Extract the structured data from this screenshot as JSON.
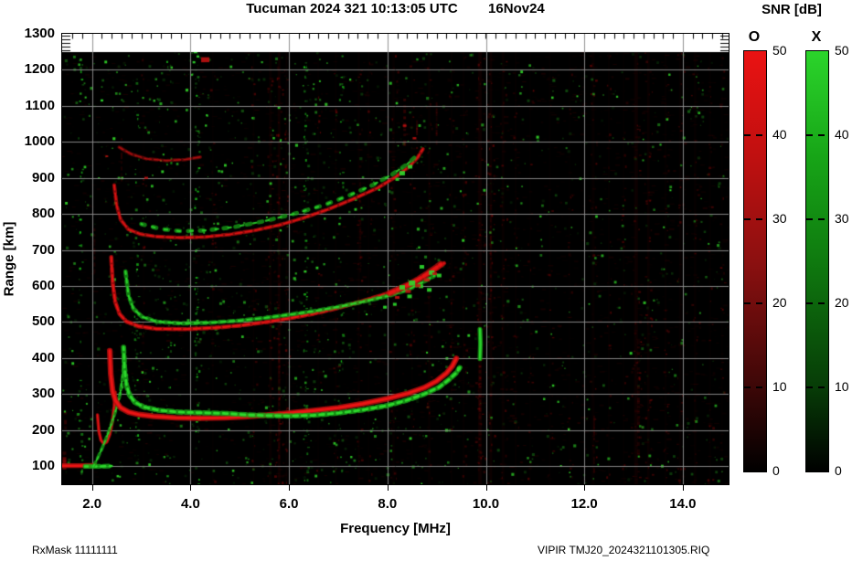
{
  "header": {
    "title": "Tucuman 2024 321 10:13:05 UTC        16Nov24"
  },
  "axes": {
    "x_label": "Frequency [MHz]",
    "y_label": "Range [km]",
    "x_tick_labels": [
      "2.0",
      "4.0",
      "6.0",
      "8.0",
      "10.0",
      "12.0",
      "14.0"
    ],
    "x_tick_values": [
      2,
      4,
      6,
      8,
      10,
      12,
      14
    ],
    "y_tick_labels": [
      "1300",
      "1200",
      "1100",
      "1000",
      "900",
      "800",
      "700",
      "600",
      "500",
      "400",
      "300",
      "200",
      "100"
    ],
    "y_tick_values": [
      1300,
      1200,
      1100,
      1000,
      900,
      800,
      700,
      600,
      500,
      400,
      300,
      200,
      100
    ]
  },
  "colorbar": {
    "title": "SNR [dB]",
    "bars": [
      {
        "label": "O",
        "top_color": "#ea1212"
      },
      {
        "label": "X",
        "top_color": "#2bd42b"
      }
    ],
    "tick_labels": [
      "50",
      "40",
      "30",
      "20",
      "10",
      "0"
    ],
    "tick_values": [
      50,
      40,
      30,
      20,
      10,
      0
    ]
  },
  "footer": {
    "left": "RxMask 11111111",
    "right": "VIPIR  TMJ20_2024321101305.RIQ"
  },
  "chart_data": {
    "type": "heatmap",
    "title": "Tucuman 2024 321 10:13:05 UTC 16Nov24",
    "xlabel": "Frequency [MHz]",
    "ylabel": "Range [km]",
    "xlim": [
      1.4,
      14.93
    ],
    "ylim": [
      49,
      1300
    ],
    "x_ticks": [
      2,
      4,
      6,
      8,
      10,
      12,
      14
    ],
    "y_ticks": [
      100,
      200,
      300,
      400,
      500,
      600,
      700,
      800,
      900,
      1000,
      1100,
      1200,
      1300
    ],
    "grid": true,
    "colorbars": [
      {
        "name": "O",
        "color_scale": "black-to-red",
        "range_db": [
          0,
          50
        ]
      },
      {
        "name": "X",
        "color_scale": "black-to-green",
        "range_db": [
          0,
          50
        ]
      }
    ],
    "traces": [
      {
        "name": "E-echo-O",
        "mode": "O",
        "style": "solid",
        "width": 4,
        "alpha": 1,
        "points": [
          [
            1.4,
            101
          ],
          [
            1.72,
            101
          ],
          [
            2.06,
            102
          ]
        ]
      },
      {
        "name": "E-echo-X",
        "mode": "X",
        "style": "dash",
        "width": 4,
        "alpha": 1,
        "points": [
          [
            1.86,
            99
          ],
          [
            2.12,
            99
          ],
          [
            2.4,
            100
          ]
        ]
      },
      {
        "name": "E-cusp-O",
        "mode": "O",
        "style": "solid",
        "width": 2.5,
        "alpha": 0.95,
        "points": [
          [
            2.11,
            242
          ],
          [
            2.14,
            196
          ],
          [
            2.18,
            172
          ],
          [
            2.24,
            162
          ],
          [
            2.3,
            167
          ],
          [
            2.36,
            188
          ],
          [
            2.41,
            222
          ],
          [
            2.45,
            266
          ],
          [
            2.47,
            305
          ]
        ]
      },
      {
        "name": "EF-valley-X",
        "mode": "X",
        "style": "dash",
        "width": 2.5,
        "alpha": 0.9,
        "points": [
          [
            2.02,
            98
          ],
          [
            2.1,
            118
          ],
          [
            2.18,
            142
          ],
          [
            2.26,
            168
          ],
          [
            2.34,
            196
          ],
          [
            2.42,
            228
          ],
          [
            2.5,
            262
          ],
          [
            2.57,
            300
          ],
          [
            2.62,
            348
          ],
          [
            2.66,
            410
          ]
        ]
      },
      {
        "name": "F1-O",
        "mode": "O",
        "style": "solid",
        "width": 5,
        "alpha": 1,
        "points": [
          [
            2.36,
            420
          ],
          [
            2.38,
            356
          ],
          [
            2.42,
            306
          ],
          [
            2.48,
            281
          ],
          [
            2.58,
            262
          ],
          [
            2.74,
            250
          ],
          [
            2.95,
            243
          ],
          [
            3.25,
            238
          ],
          [
            3.7,
            234
          ],
          [
            4.2,
            233
          ],
          [
            4.7,
            234
          ],
          [
            5.1,
            237
          ],
          [
            5.5,
            241
          ],
          [
            6.0,
            247
          ],
          [
            6.5,
            254
          ],
          [
            7.0,
            262
          ],
          [
            7.5,
            273
          ],
          [
            8.0,
            287
          ],
          [
            8.4,
            301
          ],
          [
            8.75,
            318
          ],
          [
            9.0,
            336
          ],
          [
            9.2,
            358
          ],
          [
            9.32,
            378
          ],
          [
            9.4,
            399
          ]
        ]
      },
      {
        "name": "F1-X",
        "mode": "X",
        "style": "dash",
        "width": 4.5,
        "alpha": 1,
        "points": [
          [
            2.64,
            430
          ],
          [
            2.66,
            372
          ],
          [
            2.7,
            324
          ],
          [
            2.76,
            297
          ],
          [
            2.87,
            277
          ],
          [
            3.05,
            264
          ],
          [
            3.35,
            255
          ],
          [
            3.75,
            250
          ],
          [
            4.2,
            248
          ],
          [
            4.7,
            246
          ],
          [
            5.2,
            242
          ],
          [
            5.6,
            240
          ],
          [
            6.0,
            239
          ],
          [
            6.5,
            241
          ],
          [
            7.0,
            247
          ],
          [
            7.5,
            256
          ],
          [
            8.0,
            268
          ],
          [
            8.4,
            283
          ],
          [
            8.75,
            300
          ],
          [
            9.05,
            319
          ],
          [
            9.25,
            340
          ],
          [
            9.4,
            359
          ],
          [
            9.47,
            373
          ]
        ]
      },
      {
        "name": "F2-O",
        "mode": "O",
        "style": "frag",
        "width": 3.5,
        "alpha": 0.95,
        "points": [
          [
            2.39,
            680
          ],
          [
            2.42,
            608
          ],
          [
            2.47,
            556
          ],
          [
            2.56,
            522
          ],
          [
            2.7,
            501
          ],
          [
            2.95,
            488
          ],
          [
            3.3,
            481
          ],
          [
            3.9,
            480
          ],
          [
            4.5,
            484
          ],
          [
            5.0,
            490
          ],
          [
            5.5,
            499
          ],
          [
            6.0,
            510
          ],
          [
            6.5,
            523
          ],
          [
            7.0,
            539
          ],
          [
            7.5,
            558
          ],
          [
            8.0,
            579
          ],
          [
            8.35,
            598
          ],
          [
            8.7,
            623
          ],
          [
            9.0,
            648
          ],
          [
            9.15,
            663
          ]
        ]
      },
      {
        "name": "F2-X",
        "mode": "X",
        "style": "dash",
        "width": 3.5,
        "alpha": 0.9,
        "points": [
          [
            2.68,
            640
          ],
          [
            2.74,
            574
          ],
          [
            2.84,
            537
          ],
          [
            3.02,
            514
          ],
          [
            3.32,
            501
          ],
          [
            3.82,
            496
          ],
          [
            4.4,
            498
          ],
          [
            5.0,
            504
          ],
          [
            5.5,
            511
          ],
          [
            6.0,
            520
          ],
          [
            6.5,
            530
          ],
          [
            7.0,
            542
          ],
          [
            7.5,
            556
          ],
          [
            8.0,
            572
          ],
          [
            8.4,
            589
          ],
          [
            8.7,
            609
          ],
          [
            8.95,
            628
          ]
        ]
      },
      {
        "name": "F2-cluster-O",
        "mode": "O",
        "style": "frag",
        "width": 6,
        "alpha": 0.9,
        "points": [
          [
            8.05,
            580
          ],
          [
            8.25,
            592
          ],
          [
            8.5,
            608
          ],
          [
            8.72,
            626
          ],
          [
            8.92,
            644
          ],
          [
            9.08,
            660
          ]
        ]
      },
      {
        "name": "F3-O",
        "mode": "O",
        "style": "frag",
        "width": 3,
        "alpha": 0.85,
        "points": [
          [
            2.45,
            880
          ],
          [
            2.5,
            824
          ],
          [
            2.58,
            784
          ],
          [
            2.74,
            757
          ],
          [
            2.98,
            744
          ],
          [
            3.3,
            737
          ],
          [
            3.8,
            734
          ],
          [
            4.3,
            736
          ],
          [
            4.8,
            743
          ],
          [
            5.3,
            754
          ],
          [
            5.8,
            769
          ],
          [
            6.3,
            789
          ],
          [
            6.8,
            813
          ],
          [
            7.3,
            841
          ],
          [
            7.8,
            872
          ],
          [
            8.15,
            901
          ],
          [
            8.45,
            932
          ],
          [
            8.62,
            958
          ],
          [
            8.72,
            980
          ]
        ]
      },
      {
        "name": "F3-X",
        "mode": "X",
        "style": "dots",
        "width": 3.5,
        "alpha": 0.85,
        "points": [
          [
            3.0,
            772
          ],
          [
            3.4,
            758
          ],
          [
            3.8,
            752
          ],
          [
            4.3,
            754
          ],
          [
            4.9,
            764
          ],
          [
            5.5,
            780
          ],
          [
            6.1,
            800
          ],
          [
            6.7,
            824
          ],
          [
            7.2,
            850
          ],
          [
            7.7,
            880
          ],
          [
            8.1,
            910
          ],
          [
            8.4,
            938
          ],
          [
            8.6,
            962
          ]
        ]
      },
      {
        "name": "F4-O",
        "mode": "O",
        "style": "frag",
        "width": 2.5,
        "alpha": 0.55,
        "points": [
          [
            2.55,
            985
          ],
          [
            2.8,
            966
          ],
          [
            3.1,
            953
          ],
          [
            3.5,
            948
          ],
          [
            3.9,
            951
          ],
          [
            4.2,
            958
          ]
        ]
      },
      {
        "name": "green-streak-10MHz",
        "mode": "X",
        "style": "solid",
        "width": 4,
        "alpha": 0.95,
        "points": [
          [
            9.88,
            398
          ],
          [
            9.89,
            440
          ],
          [
            9.88,
            480
          ]
        ]
      }
    ],
    "blobs": {
      "green": [
        [
          8.3,
          596,
          6
        ],
        [
          8.5,
          608,
          7
        ],
        [
          8.68,
          599,
          5
        ],
        [
          8.85,
          589,
          5
        ],
        [
          8.45,
          571,
          5
        ],
        [
          8.9,
          637,
          6
        ],
        [
          9.05,
          629,
          5
        ],
        [
          8.7,
          653,
          5
        ],
        [
          8.15,
          549,
          4
        ],
        [
          7.95,
          541,
          4
        ],
        [
          8.3,
          913,
          6
        ],
        [
          8.46,
          931,
          5
        ],
        [
          8.2,
          896,
          4
        ],
        [
          9.45,
          371,
          4
        ],
        [
          4.1,
          1250,
          4
        ],
        [
          4.15,
          1237,
          3
        ],
        [
          4.07,
          1221,
          3
        ],
        [
          6.33,
          640,
          3
        ],
        [
          2.2,
          1115,
          3
        ]
      ],
      "red": [
        [
          8.42,
          585,
          6
        ],
        [
          8.62,
          601,
          6
        ],
        [
          8.8,
          617,
          6
        ],
        [
          8.96,
          634,
          5
        ],
        [
          8.2,
          568,
          5
        ],
        [
          4.3,
          1228,
          9
        ],
        [
          8.35,
          1045,
          4
        ],
        [
          8.55,
          1010,
          4
        ],
        [
          3.1,
          900,
          4
        ],
        [
          2.3,
          960,
          3
        ]
      ]
    },
    "rfi_columns_red": [
      [
        3.05,
        2,
        0.08
      ],
      [
        4.45,
        2,
        0.07
      ],
      [
        5.28,
        2,
        0.1
      ],
      [
        5.62,
        3,
        0.18
      ],
      [
        5.8,
        3,
        0.26
      ],
      [
        5.95,
        2,
        0.15
      ],
      [
        6.6,
        2,
        0.08
      ],
      [
        6.95,
        2,
        0.1
      ],
      [
        7.42,
        2,
        0.14
      ],
      [
        7.62,
        2,
        0.08
      ],
      [
        8.12,
        3,
        0.12
      ],
      [
        8.5,
        2,
        0.08
      ],
      [
        8.85,
        3,
        0.13
      ],
      [
        9.3,
        2,
        0.1
      ],
      [
        9.55,
        2,
        0.12
      ],
      [
        9.88,
        4,
        0.26
      ],
      [
        10.1,
        3,
        0.22
      ],
      [
        10.35,
        3,
        0.15
      ],
      [
        10.6,
        2,
        0.1
      ],
      [
        10.9,
        2,
        0.08
      ],
      [
        11.3,
        2,
        0.08
      ],
      [
        11.7,
        2,
        0.07
      ],
      [
        12.18,
        3,
        0.13
      ],
      [
        12.5,
        2,
        0.1
      ],
      [
        12.8,
        2,
        0.08
      ],
      [
        13.05,
        4,
        0.22
      ],
      [
        13.3,
        3,
        0.18
      ],
      [
        13.65,
        2,
        0.12
      ],
      [
        13.95,
        3,
        0.13
      ],
      [
        14.25,
        3,
        0.12
      ],
      [
        14.55,
        2,
        0.1
      ],
      [
        14.8,
        2,
        0.08
      ]
    ],
    "red_streaks": [
      [
        1.44,
        95,
        140,
        4,
        0.5
      ],
      [
        1.46,
        205,
        250,
        3,
        0.3
      ],
      [
        8.35,
        1000,
        1120,
        3,
        0.3
      ],
      [
        8.6,
        960,
        1060,
        2,
        0.25
      ],
      [
        9.0,
        990,
        1110,
        2,
        0.2
      ],
      [
        5.8,
        120,
        470,
        2,
        0.2
      ],
      [
        9.88,
        140,
        380,
        3,
        0.22
      ],
      [
        13.1,
        120,
        450,
        3,
        0.18
      ],
      [
        10.1,
        560,
        820,
        2,
        0.15
      ],
      [
        12.2,
        90,
        240,
        2,
        0.15
      ],
      [
        7.45,
        640,
        900,
        2,
        0.12
      ],
      [
        2.05,
        640,
        760,
        2,
        0.2
      ],
      [
        2.6,
        880,
        1010,
        2,
        0.18
      ]
    ],
    "green_noise_columns": [
      [
        4.12,
        0.55
      ],
      [
        6.33,
        0.5
      ],
      [
        2.9,
        0.3
      ],
      [
        7.05,
        0.22
      ],
      [
        1.75,
        0.25
      ],
      [
        3.55,
        0.2
      ]
    ],
    "noise": {
      "green_dots": 1500,
      "red_dots": 2400,
      "seed": 42
    }
  }
}
